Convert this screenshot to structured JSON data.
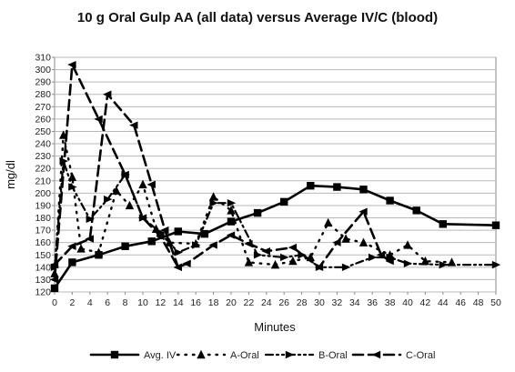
{
  "chart_data": {
    "type": "line",
    "title": "10 g Oral Gulp AA (all data) versus Average IV/C (blood)",
    "xlabel": "Minutes",
    "ylabel": "mg/dl",
    "xlim": [
      0,
      50
    ],
    "ylim": [
      120,
      310
    ],
    "x_ticks": [
      0,
      2,
      4,
      6,
      8,
      10,
      12,
      14,
      16,
      18,
      20,
      22,
      24,
      26,
      28,
      30,
      32,
      34,
      36,
      38,
      40,
      42,
      44,
      46,
      48,
      50
    ],
    "y_ticks": [
      120,
      130,
      140,
      150,
      160,
      170,
      180,
      190,
      200,
      210,
      220,
      230,
      240,
      250,
      260,
      270,
      280,
      290,
      300,
      310
    ],
    "grid": "horizontal",
    "legend_position": "bottom",
    "series": [
      {
        "name": "Avg. IV",
        "marker": "square",
        "dash": "solid",
        "color": "#000000",
        "points": [
          [
            0,
            123
          ],
          [
            2,
            144
          ],
          [
            5,
            150
          ],
          [
            8,
            157
          ],
          [
            11,
            161
          ],
          [
            14,
            169
          ],
          [
            17,
            167
          ],
          [
            20,
            177
          ],
          [
            23,
            184
          ],
          [
            26,
            193
          ],
          [
            29,
            206
          ],
          [
            32,
            205
          ],
          [
            35,
            203
          ],
          [
            38,
            194
          ],
          [
            41,
            186
          ],
          [
            44,
            175
          ],
          [
            50,
            174
          ]
        ]
      },
      {
        "name": "A-Oral",
        "marker": "triangle",
        "dash": "dot",
        "color": "#000000",
        "points": [
          [
            0,
            135
          ],
          [
            1,
            247
          ],
          [
            2,
            213
          ],
          [
            3,
            155
          ],
          [
            5,
            152
          ],
          [
            7,
            202
          ],
          [
            8.5,
            190
          ],
          [
            10,
            207
          ],
          [
            11.5,
            171
          ],
          [
            13,
            160
          ],
          [
            16,
            159
          ],
          [
            18,
            197
          ],
          [
            20,
            186
          ],
          [
            22,
            144
          ],
          [
            25,
            142
          ],
          [
            27,
            145
          ],
          [
            29,
            148
          ],
          [
            31,
            176
          ],
          [
            33,
            163
          ],
          [
            35,
            160
          ],
          [
            38,
            150
          ],
          [
            40,
            158
          ],
          [
            42,
            145
          ],
          [
            45,
            144
          ]
        ]
      },
      {
        "name": "B-Oral",
        "marker": "arrow-right",
        "dash": "dashdotdot",
        "color": "#000000",
        "points": [
          [
            0,
            140
          ],
          [
            1,
            226
          ],
          [
            2,
            205
          ],
          [
            4,
            179
          ],
          [
            6,
            195
          ],
          [
            8,
            215
          ],
          [
            10,
            180
          ],
          [
            12,
            168
          ],
          [
            14,
            152
          ],
          [
            16,
            158
          ],
          [
            18,
            192
          ],
          [
            20,
            192
          ],
          [
            23,
            150
          ],
          [
            26,
            148
          ],
          [
            28,
            150
          ],
          [
            30,
            140
          ],
          [
            33,
            140
          ],
          [
            36,
            148
          ],
          [
            38,
            148
          ],
          [
            40,
            143
          ],
          [
            44,
            142
          ],
          [
            50,
            142
          ]
        ]
      },
      {
        "name": "C-Oral",
        "marker": "arrow-left",
        "dash": "dash",
        "color": "#000000",
        "points": [
          [
            0,
            130
          ],
          [
            2,
            304
          ],
          [
            5,
            260
          ],
          [
            8,
            215
          ],
          [
            10,
            180
          ],
          [
            12,
            165
          ],
          [
            14,
            140
          ],
          [
            15,
            143
          ],
          [
            18,
            158
          ],
          [
            20,
            166
          ],
          [
            22,
            159
          ],
          [
            24,
            153
          ],
          [
            27,
            156
          ],
          [
            30,
            140
          ],
          [
            32,
            160
          ],
          [
            35,
            185
          ],
          [
            37,
            150
          ],
          [
            38,
            145
          ]
        ]
      },
      {
        "name": "",
        "marker": "arrow-left",
        "dash": "dash",
        "color": "#000000",
        "points": [
          [
            0,
            142
          ],
          [
            2,
            157
          ],
          [
            4,
            163
          ],
          [
            6,
            280
          ],
          [
            9,
            255
          ],
          [
            11,
            207
          ],
          [
            12.5,
            170
          ],
          [
            14,
            140
          ]
        ]
      }
    ]
  }
}
